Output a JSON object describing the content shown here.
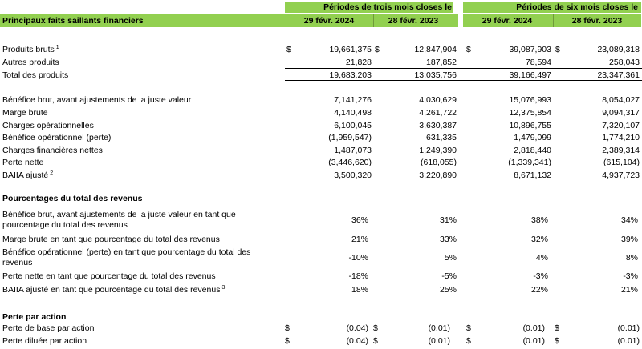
{
  "header": {
    "title": "Principaux faits saillants financiers",
    "group1": "Périodes de trois mois closes le",
    "group2": "Périodes de six mois closes le",
    "col1": "29 févr. 2024",
    "col2": "28 févr. 2023",
    "col3": "29 févr. 2024",
    "col4": "28 févr. 2023"
  },
  "currency": "$",
  "rows": [
    {
      "label": "Produits bruts",
      "sup": "1",
      "dollar": true,
      "v": [
        "19,661,375",
        "12,847,904",
        "39,087,903",
        "23,089,318"
      ]
    },
    {
      "label": "Autres produits",
      "sup": "",
      "dollar": false,
      "v": [
        "21,828",
        "187,852",
        "78,594",
        "258,043"
      ]
    },
    {
      "label": "Total des produits",
      "sup": "",
      "dollar": false,
      "v": [
        "19,683,203",
        "13,035,756",
        "39,166,497",
        "23,347,361"
      ]
    },
    {
      "label": "Bénéfice brut, avant ajustements de la juste valeur",
      "sup": "",
      "dollar": false,
      "v": [
        "7,141,276",
        "4,030,629",
        "15,076,993",
        "8,054,027"
      ]
    },
    {
      "label": "Marge brute",
      "sup": "",
      "dollar": false,
      "v": [
        "4,140,498",
        "4,261,722",
        "12,375,854",
        "9,094,317"
      ]
    },
    {
      "label": "Charges opérationnelles",
      "sup": "",
      "dollar": false,
      "v": [
        "6,100,045",
        "3,630,387",
        "10,896,755",
        "7,320,107"
      ]
    },
    {
      "label": "Bénéfice opérationnel (perte)",
      "sup": "",
      "dollar": false,
      "v": [
        "(1,959,547)",
        "631,335",
        "1,479,099",
        "1,774,210"
      ]
    },
    {
      "label": "Charges financières nettes",
      "sup": "",
      "dollar": false,
      "v": [
        "1,487,073",
        "1,249,390",
        "2,818,440",
        "2,389,314"
      ]
    },
    {
      "label": "Perte nette",
      "sup": "",
      "dollar": false,
      "v": [
        "(3,446,620)",
        "(618,055)",
        "(1,339,341)",
        "(615,104)"
      ]
    },
    {
      "label": "BAIIA ajusté",
      "sup": "2",
      "dollar": false,
      "v": [
        "3,500,320",
        "3,220,890",
        "8,671,132",
        "4,937,723"
      ]
    }
  ],
  "percent_section": {
    "title": "Pourcentages du total des revenus",
    "rows": [
      {
        "line1": "Bénéfice brut, avant ajustements de la juste valeur en tant que",
        "line2": "pourcentage du total des revenus",
        "sup": "",
        "v": [
          "36%",
          "31%",
          "38%",
          "34%"
        ]
      },
      {
        "line1": "Marge brute en tant que pourcentage du total des revenus",
        "line2": "",
        "sup": "",
        "v": [
          "21%",
          "33%",
          "32%",
          "39%"
        ]
      },
      {
        "line1": "Bénéfice opérationnel (perte) en tant que pourcentage du total des",
        "line2": "revenus",
        "sup": "",
        "v": [
          "-10%",
          "5%",
          "4%",
          "8%"
        ]
      },
      {
        "line1": "Perte nette en tant que pourcentage du total des revenus",
        "line2": "",
        "sup": "",
        "v": [
          "-18%",
          "-5%",
          "-3%",
          "-3%"
        ]
      },
      {
        "line1": "BAIIA ajusté  en tant que pourcentage du total des revenus",
        "line2": "",
        "sup": "3",
        "v": [
          "18%",
          "25%",
          "22%",
          "21%"
        ]
      }
    ]
  },
  "eps_section": {
    "title": "Perte par action",
    "rows": [
      {
        "label": "Perte de base par action",
        "v": [
          "(0.04)",
          "(0.01)",
          "(0.01)",
          "(0.01)"
        ]
      },
      {
        "label": "Perte diluée par action",
        "v": [
          "(0.04)",
          "(0.01)",
          "(0.01)",
          "(0.01)"
        ]
      }
    ]
  }
}
